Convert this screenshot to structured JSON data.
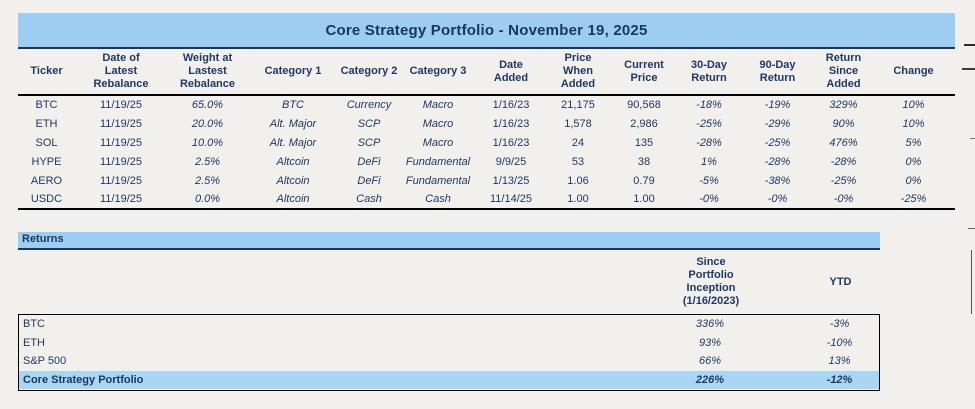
{
  "colors": {
    "page_bg": "#F1F0ED",
    "accent_blue": "#9DCDF2",
    "highlight_blue": "#A9D6F5",
    "navy_text": "#1F3864",
    "title_navy": "#17375D",
    "negative_red": "#E8433C",
    "positive_green": "#3FA24D",
    "neutral_black": "#1F1F1F"
  },
  "portfolio": {
    "title": "Core Strategy Portfolio - November 19, 2025",
    "columns": [
      {
        "key": "ticker",
        "lines": [
          "Ticker"
        ]
      },
      {
        "key": "rebalance-date",
        "lines": [
          "Date of",
          "Latest",
          "Rebalance"
        ]
      },
      {
        "key": "weight",
        "lines": [
          "Weight at",
          "Lastest",
          "Rebalance"
        ]
      },
      {
        "key": "category-1",
        "lines": [
          "Category 1"
        ]
      },
      {
        "key": "category-2",
        "lines": [
          "Category 2"
        ]
      },
      {
        "key": "category-3",
        "lines": [
          "Category 3"
        ]
      },
      {
        "key": "date-added",
        "lines": [
          "Date",
          "Added"
        ]
      },
      {
        "key": "price-when-added",
        "lines": [
          "Price",
          "When",
          "Added"
        ]
      },
      {
        "key": "current-price",
        "lines": [
          "Current",
          "Price"
        ]
      },
      {
        "key": "return-30d",
        "lines": [
          "30-Day",
          "Return"
        ]
      },
      {
        "key": "return-90d",
        "lines": [
          "90-Day",
          "Return"
        ]
      },
      {
        "key": "return-since-added",
        "lines": [
          "Return",
          "Since",
          "Added"
        ]
      },
      {
        "key": "change",
        "lines": [
          "Change"
        ]
      }
    ],
    "rows": [
      {
        "cells": [
          "BTC",
          "11/19/25",
          "65.0%",
          "BTC",
          "Currency",
          "Macro",
          "1/16/23",
          "21,175",
          "90,568",
          "-18%",
          "-19%",
          "329%",
          "10%"
        ],
        "styles": [
          "",
          "",
          "it",
          "it",
          "it",
          "it",
          "",
          "",
          "",
          "neg",
          "neg",
          "pos",
          "pos"
        ]
      },
      {
        "cells": [
          "ETH",
          "11/19/25",
          "20.0%",
          "Alt. Major",
          "SCP",
          "Macro",
          "1/16/23",
          "1,578",
          "2,986",
          "-25%",
          "-29%",
          "90%",
          "10%"
        ],
        "styles": [
          "",
          "",
          "it",
          "it",
          "it",
          "it",
          "",
          "",
          "",
          "neg",
          "neg",
          "pos",
          "pos"
        ]
      },
      {
        "cells": [
          "SOL",
          "11/19/25",
          "10.0%",
          "Alt. Major",
          "SCP",
          "Macro",
          "1/16/23",
          "24",
          "135",
          "-28%",
          "-25%",
          "476%",
          "5%"
        ],
        "styles": [
          "",
          "",
          "it",
          "it",
          "it",
          "it",
          "",
          "",
          "",
          "neg",
          "neg",
          "pos",
          "pos"
        ]
      },
      {
        "cells": [
          "HYPE",
          "11/19/25",
          "2.5%",
          "Altcoin",
          "DeFi",
          "Fundamental",
          "9/9/25",
          "53",
          "38",
          "1%",
          "-28%",
          "-28%",
          "0%"
        ],
        "styles": [
          "",
          "",
          "it",
          "it",
          "it",
          "it",
          "",
          "",
          "",
          "pos",
          "neg",
          "neg",
          "neu"
        ]
      },
      {
        "cells": [
          "AERO",
          "11/19/25",
          "2.5%",
          "Altcoin",
          "DeFi",
          "Fundamental",
          "1/13/25",
          "1.06",
          "0.79",
          "-5%",
          "-38%",
          "-25%",
          "0%"
        ],
        "styles": [
          "",
          "",
          "it",
          "it",
          "it",
          "it",
          "",
          "",
          "",
          "neg",
          "neg",
          "neg",
          "neu"
        ]
      },
      {
        "cells": [
          "USDC",
          "11/19/25",
          "0.0%",
          "Altcoin",
          "Cash",
          "Cash",
          "11/14/25",
          "1.00",
          "1.00",
          "-0%",
          "-0%",
          "-0%",
          "-25%"
        ],
        "styles": [
          "",
          "",
          "it",
          "it",
          "it",
          "it",
          "",
          "",
          "",
          "neg",
          "neg",
          "neg",
          "neg"
        ]
      }
    ]
  },
  "returns": {
    "section_label": "Returns",
    "col1_header_lines": [
      "Since",
      "Portfolio",
      "Inception",
      "(1/16/2023)"
    ],
    "col2_header": "YTD",
    "rows": [
      {
        "label": "BTC",
        "inception": "336%",
        "ytd": "-3%",
        "highlight": false
      },
      {
        "label": "ETH",
        "inception": "93%",
        "ytd": "-10%",
        "highlight": false
      },
      {
        "label": "S&P 500",
        "inception": "66%",
        "ytd": "13%",
        "highlight": false
      },
      {
        "label": "Core Strategy Portfolio",
        "inception": "226%",
        "ytd": "-12%",
        "highlight": true
      }
    ]
  }
}
